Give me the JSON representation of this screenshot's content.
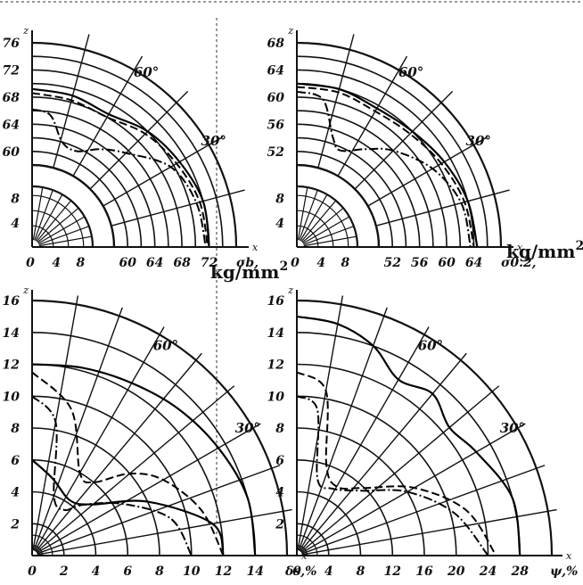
{
  "units": {
    "stress": "kg/mm",
    "stress_exp": "2"
  },
  "chart_data": [
    {
      "type": "line",
      "panel": "top-left",
      "title": "",
      "coordinate_system": "polar (angle from x axis)",
      "z_label": "z",
      "x_label": "x",
      "quantity_label": "σb,",
      "angle_labels": [
        "60°",
        "30°"
      ],
      "inner_scale": {
        "ticks": [
          "4",
          "8"
        ],
        "range": [
          0,
          10
        ]
      },
      "outer_scale": {
        "ticks": [
          "60",
          "64",
          "68",
          "72"
        ],
        "z_ticks": [
          "60",
          "64",
          "68",
          "72",
          "76"
        ],
        "range": [
          58,
          76
        ]
      },
      "series": [
        {
          "style": "solid",
          "points": [
            {
              "angle": 90,
              "r": 69.2
            },
            {
              "angle": 75,
              "r": 69.0
            },
            {
              "angle": 60,
              "r": 68.5
            },
            {
              "angle": 45,
              "r": 70.0
            },
            {
              "angle": 30,
              "r": 71.0
            },
            {
              "angle": 15,
              "r": 72.0
            },
            {
              "angle": 0,
              "r": 72.0
            }
          ]
        },
        {
          "style": "dashed",
          "points": [
            {
              "angle": 90,
              "r": 68.6
            },
            {
              "angle": 75,
              "r": 68.3
            },
            {
              "angle": 60,
              "r": 68.0
            },
            {
              "angle": 45,
              "r": 69.5
            },
            {
              "angle": 30,
              "r": 70.5
            },
            {
              "angle": 15,
              "r": 71.5
            },
            {
              "angle": 0,
              "r": 71.8
            }
          ]
        },
        {
          "style": "dash-dot",
          "points": [
            {
              "angle": 90,
              "r": 66.2
            },
            {
              "angle": 82,
              "r": 65.5
            },
            {
              "angle": 74,
              "r": 62.0
            },
            {
              "angle": 65,
              "r": 61.5
            },
            {
              "angle": 55,
              "r": 63.5
            },
            {
              "angle": 45,
              "r": 65.5
            },
            {
              "angle": 30,
              "r": 69.5
            },
            {
              "angle": 15,
              "r": 71.0
            },
            {
              "angle": 0,
              "r": 71.5
            }
          ]
        }
      ]
    },
    {
      "type": "line",
      "panel": "top-right",
      "title": "",
      "coordinate_system": "polar (angle from x axis)",
      "z_label": "z",
      "x_label": "x",
      "quantity_label": "σ0.2,",
      "angle_labels": [
        "60°",
        "30°"
      ],
      "inner_scale": {
        "ticks": [
          "4",
          "8"
        ],
        "range": [
          0,
          10
        ]
      },
      "outer_scale": {
        "ticks": [
          "52",
          "56",
          "60",
          "64"
        ],
        "z_ticks": [
          "52",
          "56",
          "60",
          "64",
          "68"
        ],
        "range": [
          50,
          68
        ]
      },
      "series": [
        {
          "style": "solid",
          "points": [
            {
              "angle": 90,
              "r": 62.0
            },
            {
              "angle": 75,
              "r": 62.0
            },
            {
              "angle": 60,
              "r": 61.5
            },
            {
              "angle": 45,
              "r": 62.0
            },
            {
              "angle": 30,
              "r": 63.0
            },
            {
              "angle": 15,
              "r": 64.0
            },
            {
              "angle": 0,
              "r": 64.5
            }
          ]
        },
        {
          "style": "dashed",
          "points": [
            {
              "angle": 90,
              "r": 61.5
            },
            {
              "angle": 75,
              "r": 61.5
            },
            {
              "angle": 60,
              "r": 61.0
            },
            {
              "angle": 45,
              "r": 61.5
            },
            {
              "angle": 30,
              "r": 62.5
            },
            {
              "angle": 15,
              "r": 63.5
            },
            {
              "angle": 0,
              "r": 64.0
            }
          ]
        },
        {
          "style": "dash-dot",
          "points": [
            {
              "angle": 90,
              "r": 60.8
            },
            {
              "angle": 80,
              "r": 60.0
            },
            {
              "angle": 72,
              "r": 55.0
            },
            {
              "angle": 66,
              "r": 53.5
            },
            {
              "angle": 55,
              "r": 55.5
            },
            {
              "angle": 45,
              "r": 58.0
            },
            {
              "angle": 30,
              "r": 61.0
            },
            {
              "angle": 15,
              "r": 63.0
            },
            {
              "angle": 0,
              "r": 63.5
            }
          ]
        }
      ]
    },
    {
      "type": "line",
      "panel": "bottom-left",
      "title": "",
      "coordinate_system": "polar (angle from x axis)",
      "z_label": "z",
      "x_label": "x",
      "quantity_label": "δs,%",
      "angle_labels": [
        "60°",
        "30°"
      ],
      "scale": {
        "ticks": [
          "0",
          "2",
          "4",
          "6",
          "8",
          "10",
          "12",
          "14"
        ],
        "z_ticks": [
          "2",
          "4",
          "6",
          "8",
          "10",
          "12",
          "14",
          "16"
        ],
        "range": [
          0,
          16
        ]
      },
      "series": [
        {
          "style": "solid",
          "points": [
            {
              "angle": 90,
              "r": 12.0
            },
            {
              "angle": 75,
              "r": 12.2
            },
            {
              "angle": 60,
              "r": 12.5
            },
            {
              "angle": 45,
              "r": 13.0
            },
            {
              "angle": 30,
              "r": 13.5
            },
            {
              "angle": 15,
              "r": 14.0
            },
            {
              "angle": 0,
              "r": 14.0
            }
          ]
        },
        {
          "style": "dashed",
          "points": [
            {
              "angle": 90,
              "r": 11.5
            },
            {
              "angle": 75,
              "r": 9.5
            },
            {
              "angle": 60,
              "r": 6.0
            },
            {
              "angle": 50,
              "r": 6.0
            },
            {
              "angle": 40,
              "r": 8.0
            },
            {
              "angle": 30,
              "r": 9.5
            },
            {
              "angle": 15,
              "r": 11.0
            },
            {
              "angle": 0,
              "r": 12.0
            }
          ]
        },
        {
          "style": "dash-dot",
          "points": [
            {
              "angle": 90,
              "r": 10.0
            },
            {
              "angle": 80,
              "r": 8.5
            },
            {
              "angle": 70,
              "r": 4.0
            },
            {
              "angle": 55,
              "r": 3.5
            },
            {
              "angle": 45,
              "r": 4.5
            },
            {
              "angle": 30,
              "r": 6.5
            },
            {
              "angle": 15,
              "r": 9.0
            },
            {
              "angle": 0,
              "r": 10.0
            }
          ]
        },
        {
          "style": "solid",
          "points": [
            {
              "angle": 90,
              "r": 6.0
            },
            {
              "angle": 75,
              "r": 5.0
            },
            {
              "angle": 55,
              "r": 4.2
            },
            {
              "angle": 40,
              "r": 5.0
            },
            {
              "angle": 25,
              "r": 8.0
            },
            {
              "angle": 10,
              "r": 11.5
            },
            {
              "angle": 0,
              "r": 12.0
            }
          ]
        }
      ]
    },
    {
      "type": "line",
      "panel": "bottom-right",
      "title": "",
      "coordinate_system": "polar (angle from x axis)",
      "z_label": "z",
      "x_label": "x",
      "quantity_label": "ψ,%",
      "angle_labels": [
        "60°",
        "30°"
      ],
      "scale": {
        "ticks": [
          "0",
          "4",
          "8",
          "12",
          "16",
          "20",
          "24",
          "28"
        ],
        "z_ticks": [
          "2",
          "4",
          "6",
          "8",
          "10",
          "12",
          "14",
          "16"
        ],
        "range": [
          0,
          32
        ]
      },
      "series": [
        {
          "style": "solid",
          "points": [
            {
              "angle": 90,
              "r": 30.0
            },
            {
              "angle": 80,
              "r": 29.5
            },
            {
              "angle": 70,
              "r": 28.0
            },
            {
              "angle": 60,
              "r": 25.5
            },
            {
              "angle": 50,
              "r": 26.5
            },
            {
              "angle": 40,
              "r": 25.0
            },
            {
              "angle": 30,
              "r": 26.0
            },
            {
              "angle": 15,
              "r": 28.0
            },
            {
              "angle": 0,
              "r": 28.0
            }
          ]
        },
        {
          "style": "dashed",
          "points": [
            {
              "angle": 90,
              "r": 23.0
            },
            {
              "angle": 80,
              "r": 21.0
            },
            {
              "angle": 72,
              "r": 12.0
            },
            {
              "angle": 60,
              "r": 10.0
            },
            {
              "angle": 45,
              "r": 12.0
            },
            {
              "angle": 30,
              "r": 17.0
            },
            {
              "angle": 15,
              "r": 22.0
            },
            {
              "angle": 0,
              "r": 25.0
            }
          ]
        },
        {
          "style": "dash-dot",
          "points": [
            {
              "angle": 90,
              "r": 20.0
            },
            {
              "angle": 82,
              "r": 18.5
            },
            {
              "angle": 75,
              "r": 10.0
            },
            {
              "angle": 62,
              "r": 9.5
            },
            {
              "angle": 45,
              "r": 11.5
            },
            {
              "angle": 30,
              "r": 16.0
            },
            {
              "angle": 15,
              "r": 20.5
            },
            {
              "angle": 0,
              "r": 24.0
            }
          ]
        }
      ]
    }
  ]
}
